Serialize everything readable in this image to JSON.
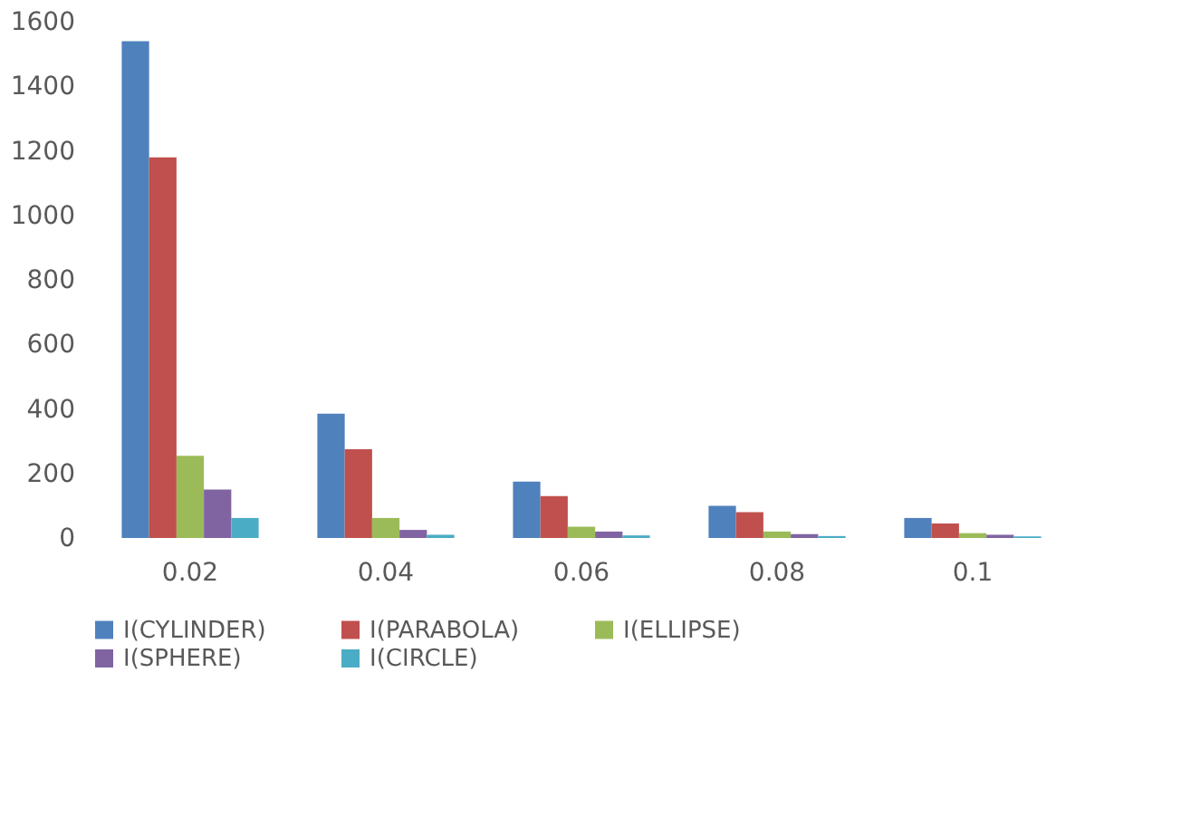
{
  "chart_data": {
    "type": "bar",
    "categories": [
      "0.02",
      "0.04",
      "0.06",
      "0.08",
      "0.1"
    ],
    "series": [
      {
        "name": "I(CYLINDER)",
        "color": "#4f81bd",
        "values": [
          1540,
          385,
          175,
          100,
          62
        ]
      },
      {
        "name": "I(PARABOLA)",
        "color": "#c0504d",
        "values": [
          1180,
          275,
          130,
          80,
          45
        ]
      },
      {
        "name": "I(ELLIPSE)",
        "color": "#9bbb59",
        "values": [
          255,
          62,
          35,
          20,
          15
        ]
      },
      {
        "name": "I(SPHERE)",
        "color": "#8064a2",
        "values": [
          150,
          25,
          20,
          12,
          10
        ]
      },
      {
        "name": "I(CIRCLE)",
        "color": "#4bacc6",
        "values": [
          62,
          10,
          8,
          6,
          5
        ]
      }
    ],
    "ylim": [
      0,
      1600
    ],
    "yticks": [
      0,
      200,
      400,
      600,
      800,
      1000,
      1200,
      1400,
      1600
    ],
    "grid": false,
    "legend": "bottom"
  }
}
